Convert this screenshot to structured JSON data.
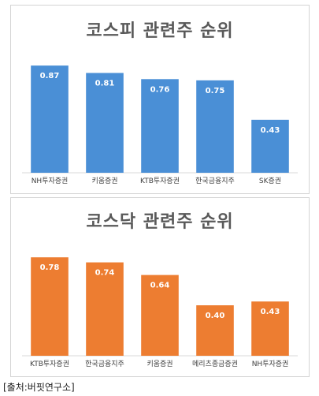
{
  "chart_data": [
    {
      "type": "bar",
      "title": "코스피 관련주 순위",
      "categories": [
        "NH투자증권",
        "키움증권",
        "KTB투자증권",
        "한국금융지주",
        "SK증권"
      ],
      "values": [
        0.87,
        0.81,
        0.76,
        0.75,
        0.43
      ],
      "value_labels": [
        "0.87",
        "0.81",
        "0.76",
        "0.75",
        "0.43"
      ],
      "ylim": [
        0,
        1.05
      ],
      "grid": false,
      "color": "#4a8fd6"
    },
    {
      "type": "bar",
      "title": "코스닥 관련주 순위",
      "categories": [
        "KTB투자증권",
        "한국금융지주",
        "키움증권",
        "메리츠종금증권",
        "NH투자증권"
      ],
      "values": [
        0.78,
        0.74,
        0.64,
        0.4,
        0.43
      ],
      "value_labels": [
        "0.78",
        "0.74",
        "0.64",
        "0.40",
        "0.43"
      ],
      "ylim": [
        0,
        0.95
      ],
      "grid": false,
      "color": "#ed7d31"
    }
  ],
  "source_text": "[출처:버핏연구소]"
}
